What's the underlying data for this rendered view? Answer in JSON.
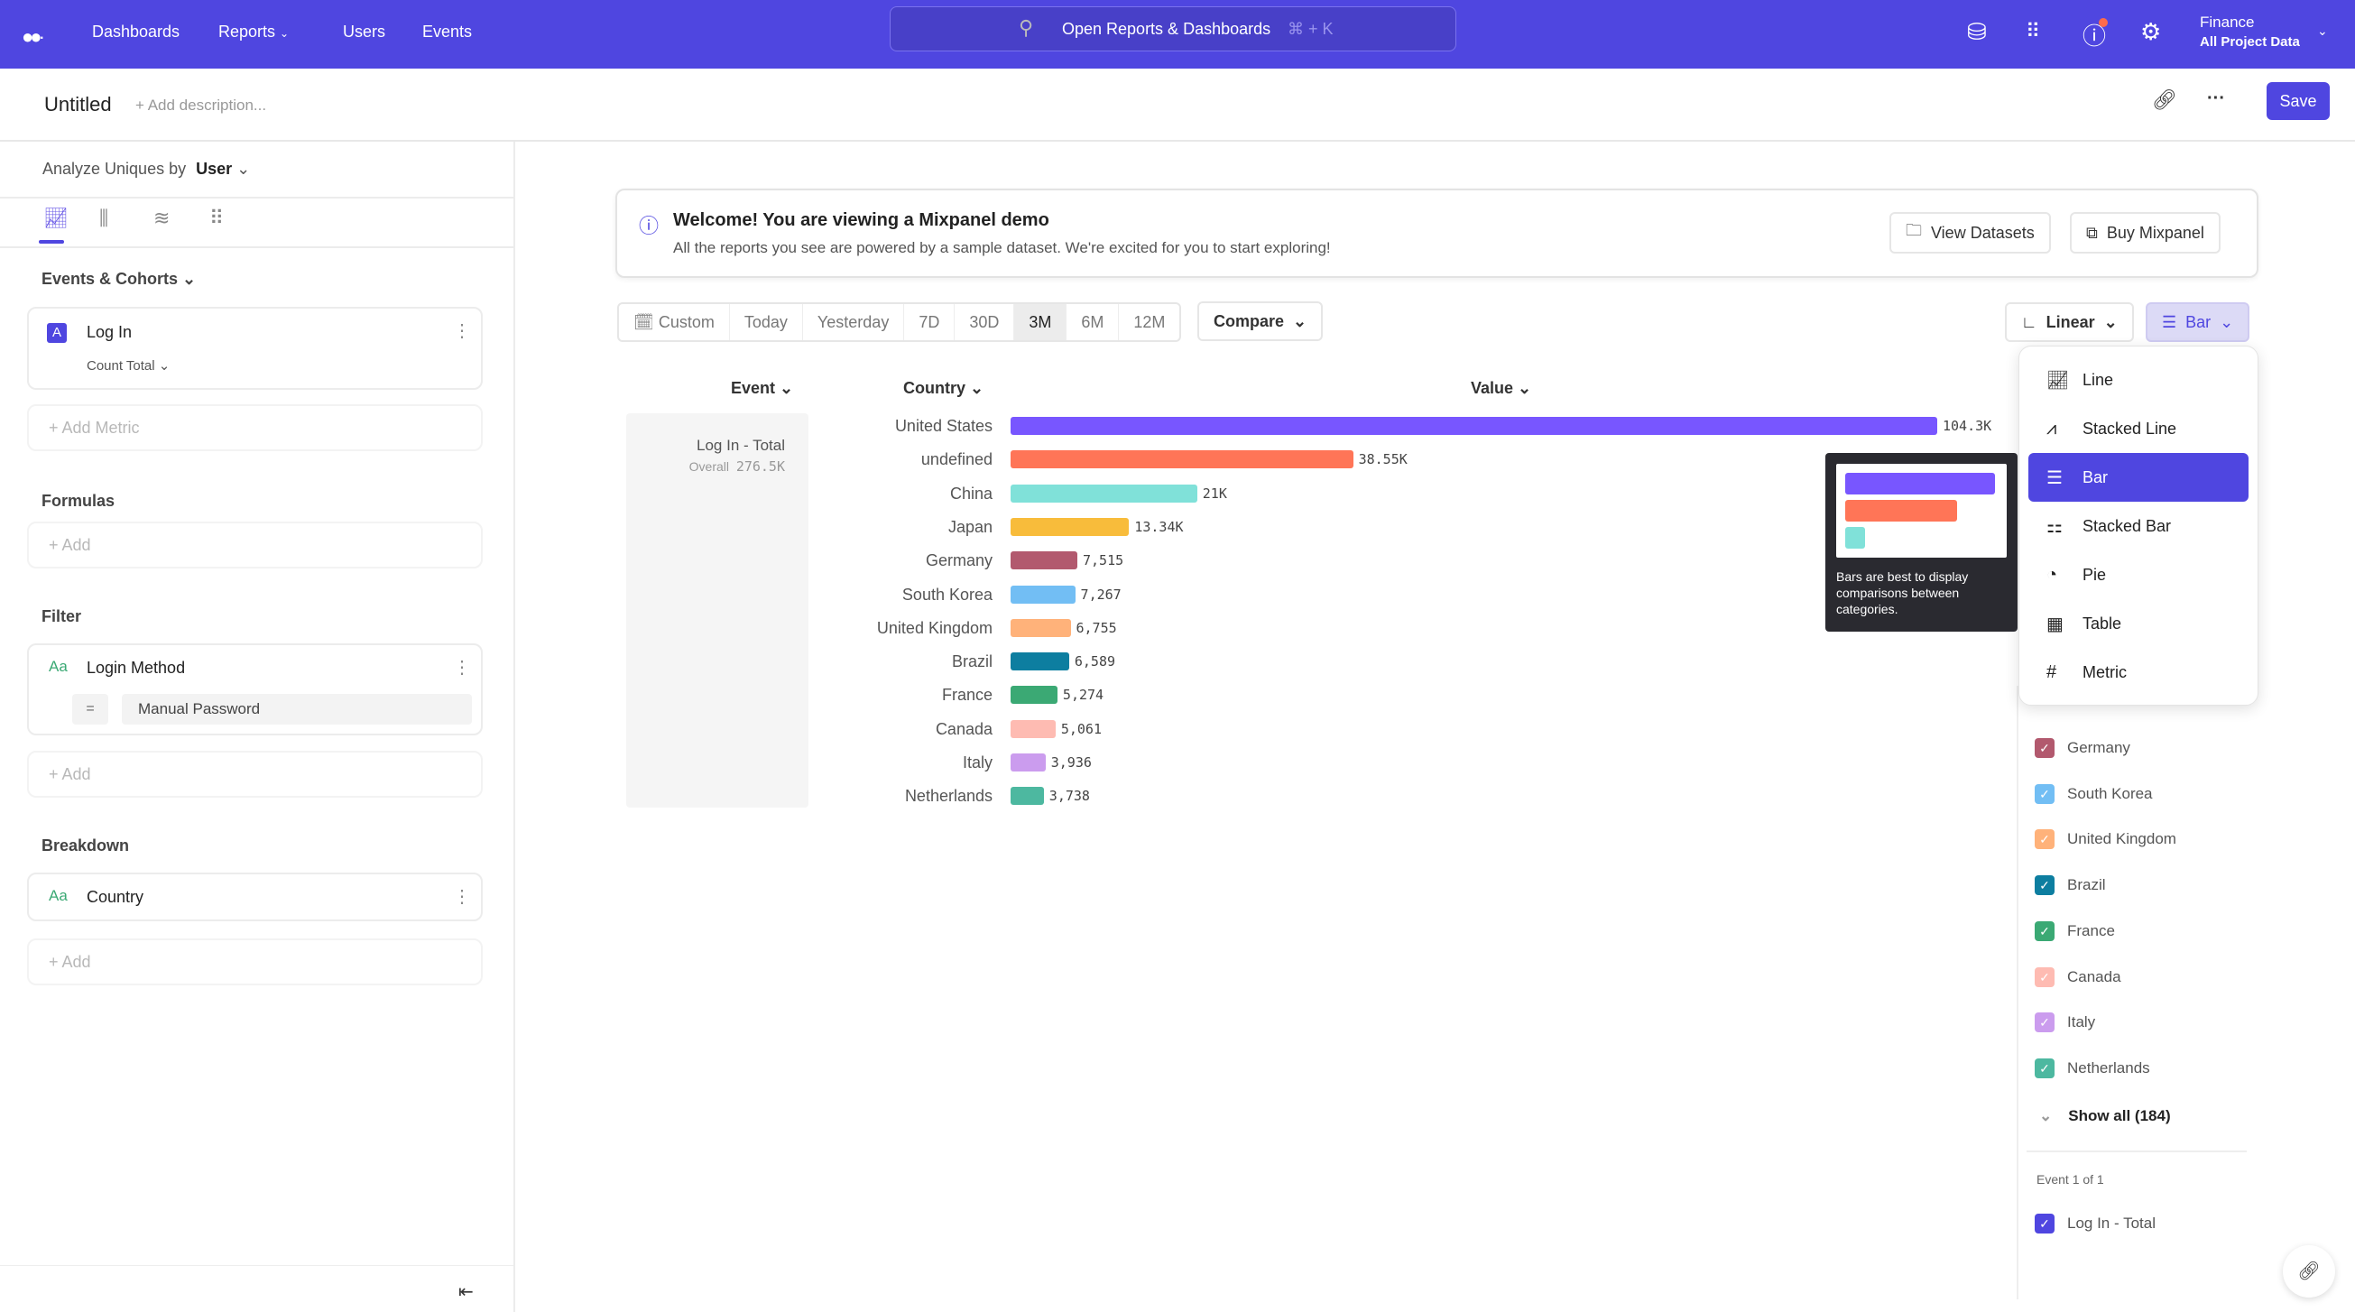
{
  "topbar": {
    "nav": [
      "Dashboards",
      "Reports",
      "Users",
      "Events"
    ],
    "search_placeholder": "Open Reports & Dashboards",
    "search_shortcut": "⌘ + K",
    "project_name": "Finance",
    "project_scope": "All Project Data",
    "brand_color": "#4f46e0"
  },
  "titlebar": {
    "title": "Untitled",
    "add_description": "+ Add description...",
    "save_label": "Save"
  },
  "left": {
    "analyze_label": "Analyze Uniques by",
    "analyze_value": "User",
    "events_section": "Events & Cohorts",
    "event_badge": "A",
    "event_name": "Log In",
    "event_measure": "Count Total",
    "add_metric": "+ Add Metric",
    "formulas_section": "Formulas",
    "add": "+ Add",
    "filter_section": "Filter",
    "filter_type": "Aa",
    "filter_property": "Login Method",
    "filter_operator": "=",
    "filter_value": "Manual Password",
    "breakdown_section": "Breakdown",
    "breakdown_type": "Aa",
    "breakdown_property": "Country"
  },
  "banner": {
    "title": "Welcome! You are viewing a Mixpanel demo",
    "subtitle": "All the reports you see are powered by a sample dataset. We're excited for you to start exploring!",
    "view_datasets": "View Datasets",
    "buy": "Buy Mixpanel"
  },
  "toolbar": {
    "ranges": [
      "Custom",
      "Today",
      "Yesterday",
      "7D",
      "30D",
      "3M",
      "6M",
      "12M"
    ],
    "selected_range": "3M",
    "compare": "Compare",
    "scale": "Linear",
    "chart_type": "Bar"
  },
  "table": {
    "col_event": "Event",
    "col_country": "Country",
    "col_value": "Value",
    "event_cell": "Log In - Total",
    "overall_label": "Overall",
    "overall_value": "276.5K"
  },
  "chart_data": {
    "type": "bar",
    "orientation": "horizontal",
    "categories": [
      "United States",
      "undefined",
      "China",
      "Japan",
      "Germany",
      "South Korea",
      "United Kingdom",
      "Brazil",
      "France",
      "Canada",
      "Italy",
      "Netherlands"
    ],
    "values": [
      104300,
      38550,
      21000,
      13340,
      7515,
      7267,
      6755,
      6589,
      5274,
      5061,
      3936,
      3738
    ],
    "labels": [
      "104.3K",
      "38.55K",
      "21K",
      "13.34K",
      "7,515",
      "7,267",
      "6,755",
      "6,589",
      "5,274",
      "5,061",
      "3,936",
      "3,738"
    ],
    "colors": [
      "#7856ff",
      "#ff7557",
      "#80e1d9",
      "#f8bc3b",
      "#b2596e",
      "#72bef4",
      "#ffb27a",
      "#0d7ea0",
      "#3ba974",
      "#febbb2",
      "#cb9cee",
      "#4db8a0"
    ]
  },
  "dropdown": {
    "items": [
      "Line",
      "Stacked Line",
      "Bar",
      "Stacked Bar",
      "Pie",
      "Table",
      "Metric"
    ],
    "selected": "Bar",
    "icons": [
      "line-chart-icon",
      "stacked-line-icon",
      "bar-chart-icon",
      "stacked-bar-icon",
      "pie-icon",
      "table-icon",
      "hash-icon"
    ]
  },
  "tooltip": {
    "text": "Bars are best to display comparisons between categories."
  },
  "legend": {
    "items": [
      "Germany",
      "South Korea",
      "United Kingdom",
      "Brazil",
      "France",
      "Canada",
      "Italy",
      "Netherlands"
    ],
    "colors": [
      "#b2596e",
      "#72bef4",
      "#ffb27a",
      "#0d7ea0",
      "#3ba974",
      "#febbb2",
      "#cb9cee",
      "#4db8a0"
    ],
    "show_all": "Show all (184)",
    "event_count": "Event 1 of 1",
    "event_item": "Log In - Total"
  }
}
